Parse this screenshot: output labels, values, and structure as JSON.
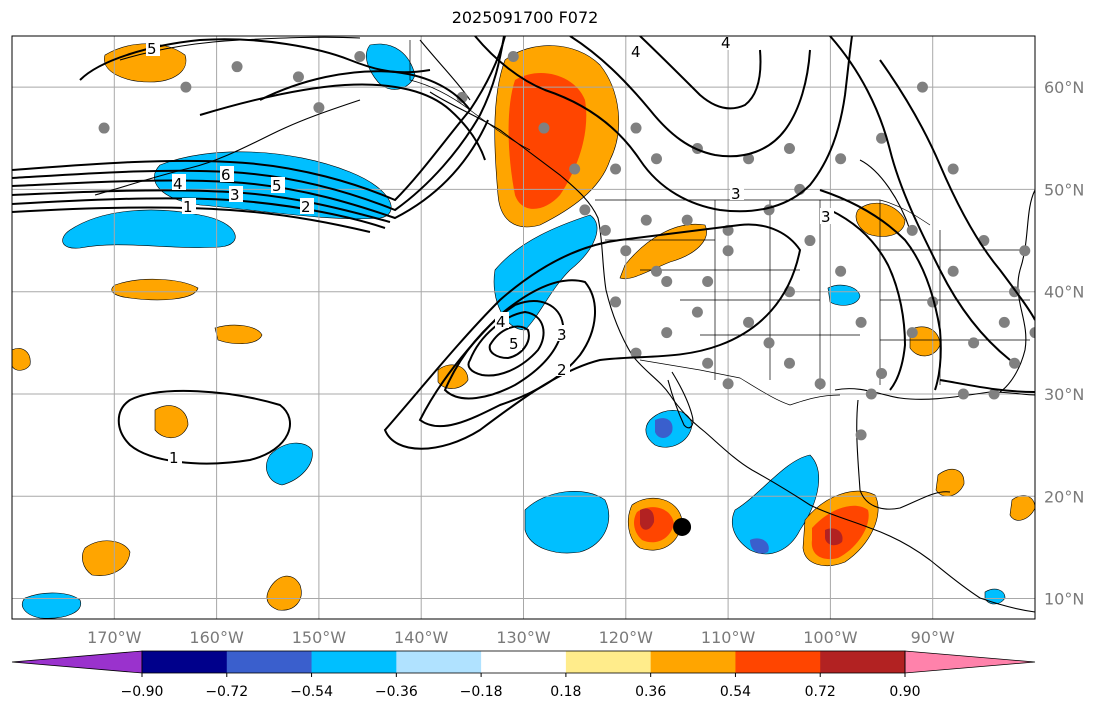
{
  "title": "2025091700 F072",
  "map": {
    "lon_range": [
      -180,
      -80
    ],
    "lat_range": [
      8,
      65
    ],
    "lon_ticks": [
      {
        "lon": -170,
        "label": "170°W"
      },
      {
        "lon": -160,
        "label": "160°W"
      },
      {
        "lon": -150,
        "label": "150°W"
      },
      {
        "lon": -140,
        "label": "140°W"
      },
      {
        "lon": -130,
        "label": "130°W"
      },
      {
        "lon": -120,
        "label": "120°W"
      },
      {
        "lon": -110,
        "label": "110°W"
      },
      {
        "lon": -100,
        "label": "100°W"
      },
      {
        "lon": -90,
        "label": "90°W"
      }
    ],
    "lat_ticks": [
      {
        "lat": 60,
        "label": "60°N"
      },
      {
        "lat": 50,
        "label": "50°N"
      },
      {
        "lat": 40,
        "label": "40°N"
      },
      {
        "lat": 30,
        "label": "30°N"
      },
      {
        "lat": 20,
        "label": "20°N"
      },
      {
        "lat": 10,
        "label": "10°N"
      }
    ],
    "contour_labels": [
      "1",
      "2",
      "3",
      "4",
      "5",
      "6"
    ],
    "storm_marker": {
      "lon": -114.5,
      "lat": 17.0
    }
  },
  "colorbar": {
    "colors": [
      "#9a32cd",
      "#00008b",
      "#3a5fcd",
      "#00bfff",
      "#b0e2ff",
      "#ffffff",
      "#ffec8b",
      "#ffa500",
      "#ff4500",
      "#b22222",
      "#ff82ab"
    ],
    "labels": [
      "−0.90",
      "−0.72",
      "−0.54",
      "−0.36",
      "−0.18",
      "0.18",
      "0.36",
      "0.54",
      "0.72",
      "0.90"
    ]
  }
}
